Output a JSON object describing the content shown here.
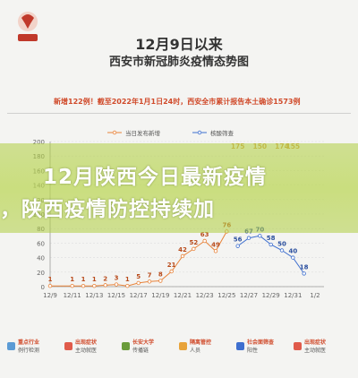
{
  "header": {
    "logo_text": "新华网 陕西",
    "title_line1": "12月9日以来",
    "title_line2": "西安市新冠肺炎疫情态势图",
    "summary": "新增122例！截至2022年1月1日24时，西安全市累计报告本土确诊1573例"
  },
  "banner": {
    "line1": "12月陕西今日最新疫情",
    "line2": "，陕西疫情防控持续加"
  },
  "chart_data": {
    "type": "line",
    "categories": [
      "12/9",
      "12/10",
      "12/11",
      "12/12",
      "12/13",
      "12/14",
      "12/15",
      "12/16",
      "12/17",
      "12/18",
      "12/19",
      "12/20",
      "12/21",
      "12/22",
      "12/23",
      "12/24",
      "12/25",
      "12/26",
      "12/27",
      "12/28",
      "12/29",
      "12/30",
      "12/31",
      "1/1",
      "1/2"
    ],
    "x_tick_labels": [
      "12/9",
      "12/11",
      "12/13",
      "12/15",
      "12/17",
      "12/19",
      "12/21",
      "12/23",
      "12/25",
      "12/27",
      "12/29",
      "12/31",
      "1/2"
    ],
    "series": [
      {
        "name": "当日发布新增",
        "color": "#e8833a",
        "values": [
          1,
          null,
          1,
          1,
          1,
          2,
          3,
          1,
          5,
          7,
          8,
          21,
          42,
          52,
          63,
          49,
          76,
          null,
          null,
          null,
          null,
          null,
          null,
          null,
          null
        ]
      },
      {
        "name": "核酸筛查",
        "color": "#3e6fcf",
        "values": [
          null,
          null,
          null,
          null,
          null,
          null,
          null,
          null,
          null,
          null,
          null,
          null,
          null,
          null,
          null,
          null,
          null,
          56,
          67,
          70,
          58,
          50,
          40,
          18,
          null
        ]
      }
    ],
    "annotations": [
      {
        "x": "12/26",
        "label": "175"
      },
      {
        "x": "12/28",
        "label": "150"
      },
      {
        "x": "12/30",
        "label": "174"
      },
      {
        "x": "12/31",
        "label": "155"
      }
    ],
    "ylim": [
      0,
      200
    ],
    "yticks": [
      0,
      20,
      40,
      60,
      80,
      100,
      120,
      140,
      160,
      180,
      200
    ],
    "grid": true,
    "legend_position": "top"
  },
  "footer_legend": [
    {
      "title": "重点行业",
      "sub": "例行检测",
      "color": "#5b9bd5"
    },
    {
      "title": "出现症状",
      "sub": "主动就医",
      "color": "#e05b4b"
    },
    {
      "title": "长安大学",
      "sub": "传播链",
      "color": "#6a9c3b"
    },
    {
      "title": "隔离管控",
      "sub": "人员",
      "color": "#e8a33a"
    },
    {
      "title": "社会面筛查",
      "sub": "阳性",
      "color": "#3e6fcf"
    },
    {
      "title": "出现症状",
      "sub": "主动就医",
      "color": "#e05b4b"
    }
  ]
}
